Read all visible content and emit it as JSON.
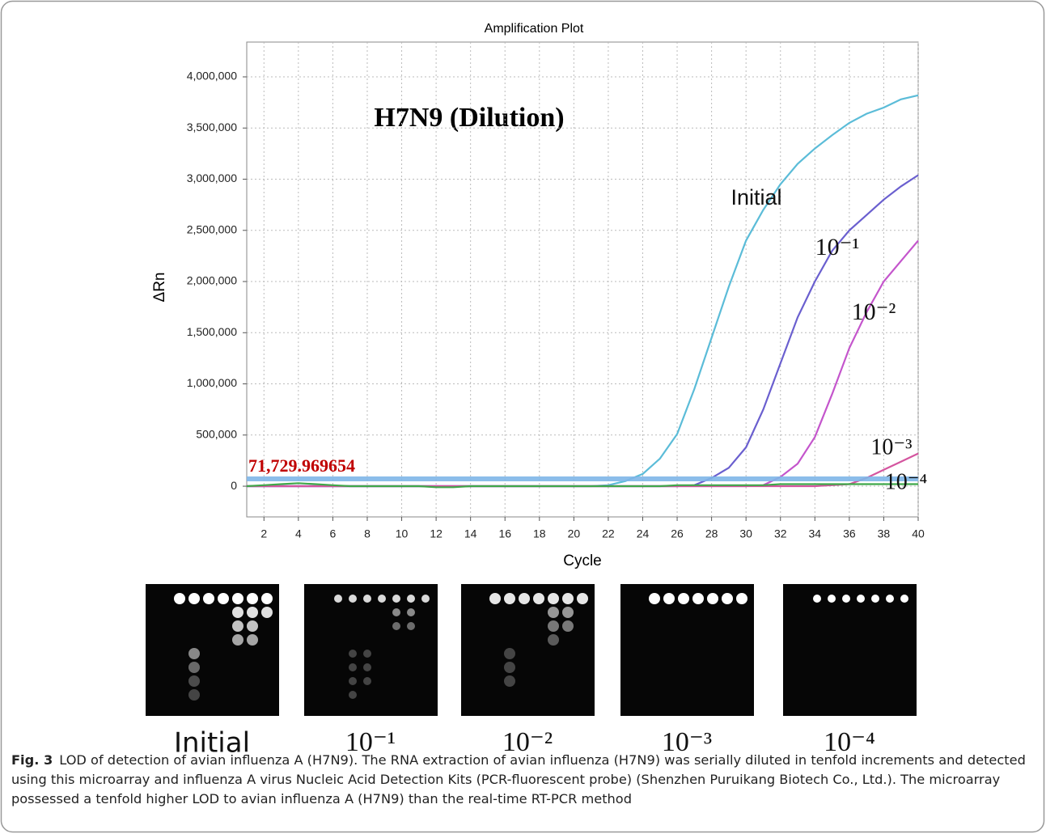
{
  "chart_data": {
    "type": "line",
    "title": "Amplification Plot",
    "annotation": "H7N9 (Dilution)",
    "x_label": "Cycle",
    "y_label": "ΔRn",
    "x": [
      1,
      2,
      3,
      4,
      5,
      6,
      7,
      8,
      9,
      10,
      11,
      12,
      13,
      14,
      15,
      16,
      17,
      18,
      19,
      20,
      21,
      22,
      23,
      24,
      25,
      26,
      27,
      28,
      29,
      30,
      31,
      32,
      33,
      34,
      35,
      36,
      37,
      38,
      39,
      40
    ],
    "series": [
      {
        "name": "Initial",
        "color": "#5bbcd8",
        "values": [
          0,
          0,
          0,
          0,
          0,
          0,
          0,
          0,
          0,
          0,
          0,
          0,
          0,
          0,
          0,
          0,
          0,
          0,
          0,
          0,
          0,
          10000,
          50000,
          120000,
          270000,
          510000,
          950000,
          1450000,
          1950000,
          2400000,
          2700000,
          2950000,
          3150000,
          3300000,
          3430000,
          3550000,
          3640000,
          3700000,
          3780000,
          3820000
        ]
      },
      {
        "name": "10⁻¹",
        "color": "#6a5fcf",
        "values": [
          0,
          0,
          0,
          0,
          0,
          0,
          0,
          0,
          0,
          0,
          0,
          0,
          0,
          0,
          0,
          0,
          0,
          0,
          0,
          0,
          0,
          0,
          0,
          0,
          0,
          0,
          10000,
          80000,
          180000,
          380000,
          750000,
          1200000,
          1650000,
          2000000,
          2300000,
          2500000,
          2650000,
          2800000,
          2930000,
          3040000
        ]
      },
      {
        "name": "10⁻²",
        "color": "#c455cc",
        "values": [
          0,
          0,
          0,
          0,
          0,
          0,
          0,
          0,
          0,
          0,
          0,
          0,
          0,
          0,
          0,
          0,
          0,
          0,
          0,
          0,
          0,
          0,
          0,
          0,
          0,
          0,
          0,
          0,
          0,
          0,
          10000,
          90000,
          220000,
          480000,
          900000,
          1350000,
          1700000,
          2000000,
          2200000,
          2400000
        ]
      },
      {
        "name": "10⁻³",
        "color": "#d4559f",
        "values": [
          0,
          0,
          0,
          0,
          0,
          0,
          0,
          0,
          0,
          0,
          0,
          0,
          0,
          0,
          0,
          0,
          0,
          0,
          0,
          0,
          0,
          0,
          0,
          0,
          0,
          0,
          0,
          0,
          0,
          0,
          0,
          0,
          0,
          0,
          10000,
          20000,
          80000,
          160000,
          240000,
          320000
        ]
      },
      {
        "name": "10⁻⁴",
        "color": "#3fa84a",
        "values": [
          0,
          10000,
          20000,
          30000,
          20000,
          10000,
          0,
          0,
          0,
          0,
          0,
          -10000,
          -10000,
          0,
          0,
          0,
          0,
          0,
          0,
          0,
          0,
          0,
          0,
          0,
          0,
          10000,
          10000,
          10000,
          10000,
          10000,
          10000,
          20000,
          20000,
          20000,
          20000,
          20000,
          20000,
          20000,
          20000,
          20000
        ]
      }
    ],
    "threshold": {
      "value": 71729.969654,
      "label": "71,729.969654",
      "color": "#7fb6e8"
    },
    "xlim": [
      1,
      40
    ],
    "ylim": [
      -300000,
      4340000
    ],
    "xticks": [
      2,
      4,
      6,
      8,
      10,
      12,
      14,
      16,
      18,
      20,
      22,
      24,
      26,
      28,
      30,
      32,
      34,
      36,
      38,
      40
    ],
    "yticks": [
      0,
      {
        "value": 500000,
        "label": "500,000"
      },
      {
        "value": 1000000,
        "label": "1,000,000"
      },
      {
        "value": 1500000,
        "label": "1,500,000"
      },
      {
        "value": 2000000,
        "label": "2,000,000"
      },
      {
        "value": 2500000,
        "label": "2,500,000"
      },
      {
        "value": 3000000,
        "label": "3,000,000"
      },
      {
        "value": 3500000,
        "label": "3,500,000"
      },
      {
        "value": 4000000,
        "label": "4,000,000"
      }
    ],
    "grid": true
  },
  "microarray": {
    "labels": [
      "Initial",
      "10⁻¹",
      "10⁻²",
      "10⁻³",
      "10⁻⁴"
    ]
  },
  "caption": {
    "label": "Fig. 3",
    "text": "LOD of detection of avian influenza A (H7N9). The RNA extraction of avian influenza (H7N9) was serially diluted in tenfold increments and detected using this microarray and influenza A virus Nucleic Acid Detection Kits (PCR-fluorescent probe) (Shenzhen Puruikang Biotech Co., Ltd.). The microarray possessed a tenfold higher LOD to avian influenza A (H7N9) than the real-time RT-PCR method"
  }
}
